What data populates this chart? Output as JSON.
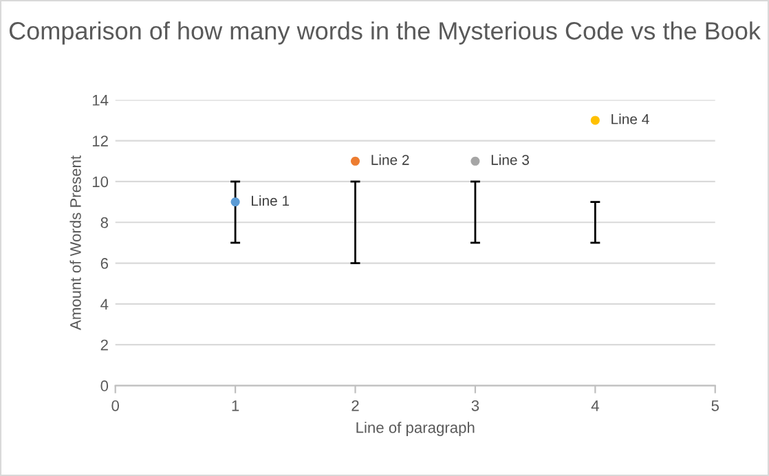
{
  "chart_data": {
    "type": "scatter",
    "title": "Comparison of how many words in the Mysterious Code vs the Book",
    "xlabel": "Line of paragraph",
    "ylabel": "Amount of Words Present",
    "x": [
      1,
      2,
      3,
      4
    ],
    "values": [
      9,
      11,
      11,
      13
    ],
    "colors": [
      "#5b9bd5",
      "#ed7d31",
      "#a5a5a5",
      "#ffc000"
    ],
    "errors": [
      [
        7,
        10
      ],
      [
        6,
        10
      ],
      [
        7,
        10
      ],
      [
        7,
        9
      ]
    ],
    "annotations": [
      {
        "text": "Line 1",
        "x": 1,
        "y": 9
      },
      {
        "text": "Line 2",
        "x": 2,
        "y": 11
      },
      {
        "text": "Line 3",
        "x": 3,
        "y": 11
      },
      {
        "text": "Line 4",
        "x": 4,
        "y": 13
      }
    ],
    "xlim": [
      0,
      5
    ],
    "xticks": [
      0,
      1,
      2,
      3,
      4,
      5
    ],
    "ylim": [
      0,
      14
    ],
    "yticks": [
      0,
      2,
      4,
      6,
      8,
      10,
      12,
      14
    ],
    "grid": "y",
    "marker": "circle",
    "legend": false
  }
}
